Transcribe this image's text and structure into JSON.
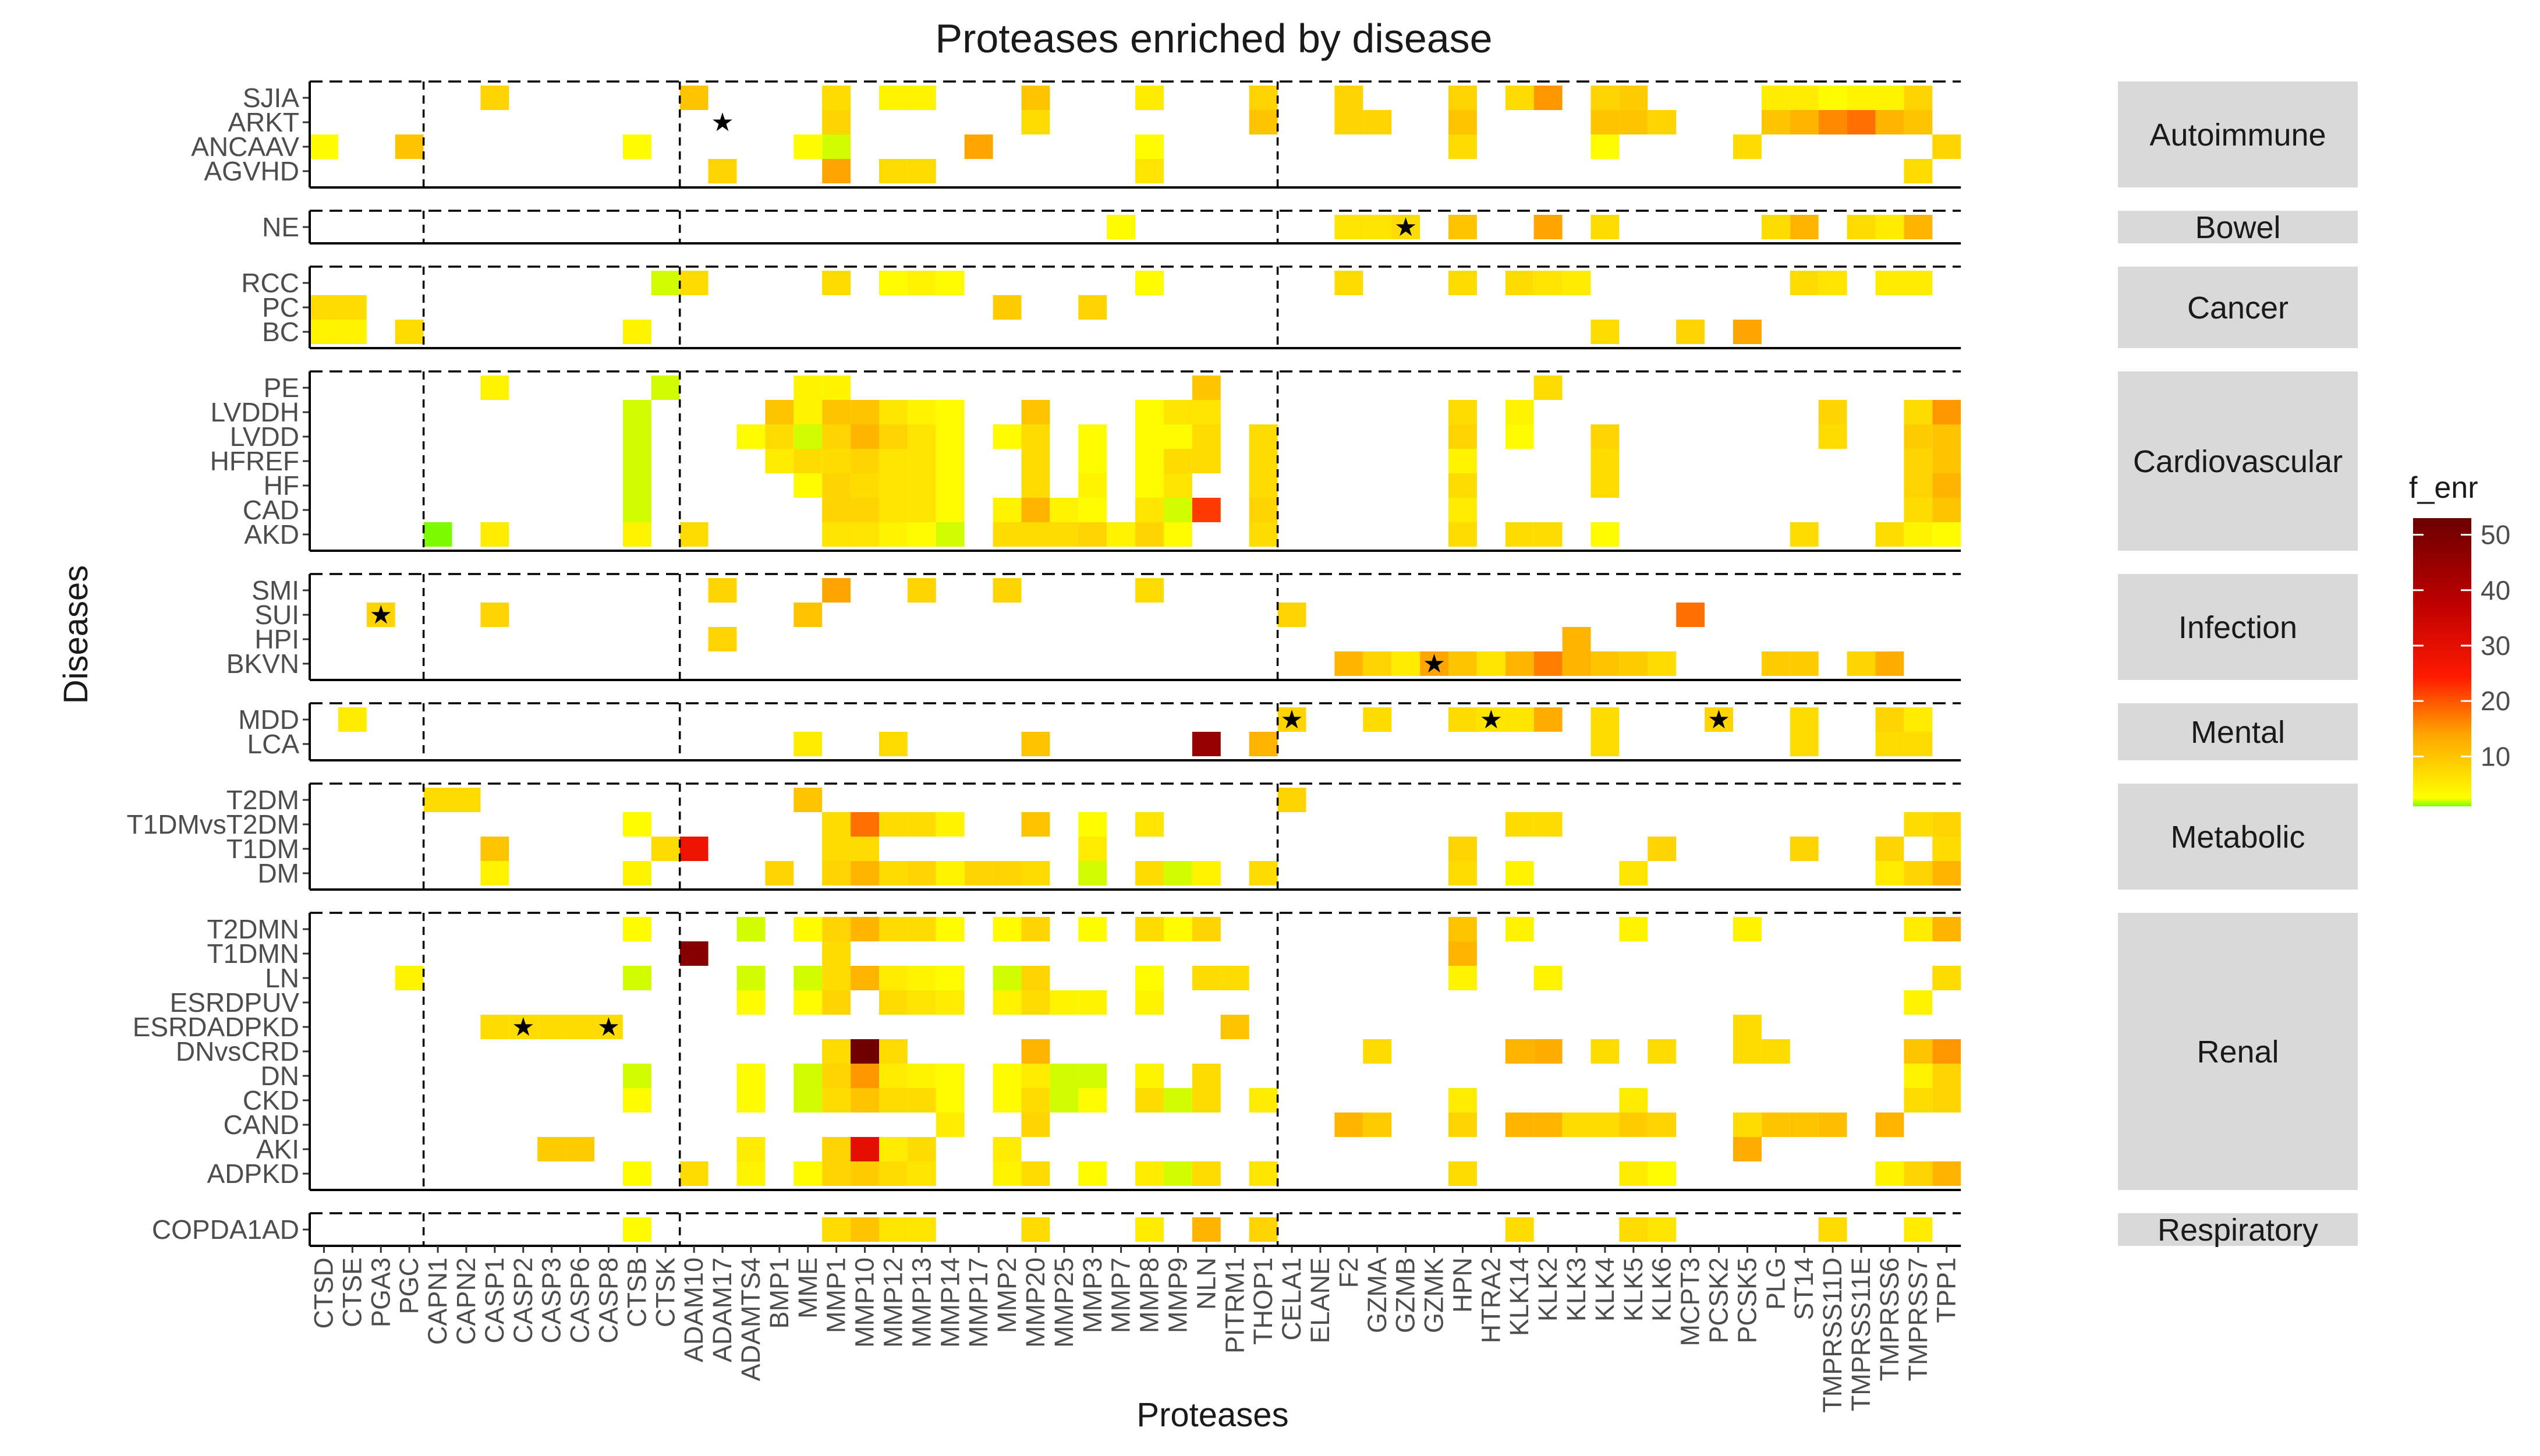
{
  "chart_data": {
    "type": "heatmap",
    "title": "Proteases enriched by disease",
    "xlabel": "Proteases",
    "ylabel": "Diseases",
    "colors": {
      "low": "#7CFC00",
      "mid1": "#FFFF00",
      "mid2": "#FFA500",
      "mid3": "#FF0000",
      "high": "#8B0000",
      "strip": "#D9D9D9",
      "star": "#000000"
    },
    "proteases": [
      "CTSD",
      "CTSE",
      "PGA3",
      "PGC",
      "CAPN1",
      "CAPN2",
      "CASP1",
      "CASP2",
      "CASP3",
      "CASP6",
      "CASP8",
      "CTSB",
      "CTSK",
      "ADAM10",
      "ADAM17",
      "ADAMTS4",
      "BMP1",
      "MME",
      "MMP1",
      "MMP10",
      "MMP12",
      "MMP13",
      "MMP14",
      "MMP17",
      "MMP2",
      "MMP20",
      "MMP25",
      "MMP3",
      "MMP7",
      "MMP8",
      "MMP9",
      "NLN",
      "PITRM1",
      "THOP1",
      "CELA1",
      "ELANE",
      "F2",
      "GZMA",
      "GZMB",
      "GZMK",
      "HPN",
      "HTRA2",
      "KLK14",
      "KLK2",
      "KLK3",
      "KLK4",
      "KLK5",
      "KLK6",
      "MCPT3",
      "PCSK2",
      "PCSK5",
      "PLG",
      "ST14",
      "TMPRSS11D",
      "TMPRSS11E",
      "TMPRSS6",
      "TMPRSS7",
      "TPP1"
    ],
    "class_boundaries_after": [
      "PGC",
      "CTSK",
      "THOP1"
    ],
    "groups": [
      {
        "name": "Autoimmune",
        "diseases": [
          "SJIA",
          "ARKT",
          "ANCAAV",
          "AGVHD"
        ]
      },
      {
        "name": "Bowel",
        "diseases": [
          "NE"
        ]
      },
      {
        "name": "Cancer",
        "diseases": [
          "RCC",
          "PC",
          "BC"
        ]
      },
      {
        "name": "Cardiovascular",
        "diseases": [
          "PE",
          "LVDDH",
          "LVDD",
          "HFREF",
          "HF",
          "CAD",
          "AKD"
        ]
      },
      {
        "name": "Infection",
        "diseases": [
          "SMI",
          "SUI",
          "HPI",
          "BKVN"
        ]
      },
      {
        "name": "Mental",
        "diseases": [
          "MDD",
          "LCA"
        ]
      },
      {
        "name": "Metabolic",
        "diseases": [
          "T2DM",
          "T1DMvsT2DM",
          "T1DM",
          "DM"
        ]
      },
      {
        "name": "Renal",
        "diseases": [
          "T2DMN",
          "T1DMN",
          "LN",
          "ESRDPUV",
          "ESRDADPKD",
          "DNvsCRD",
          "DN",
          "CKD",
          "CAND",
          "AKI",
          "ADPKD"
        ]
      },
      {
        "name": "Respiratory",
        "diseases": [
          "COPDA1AD"
        ]
      }
    ],
    "values": {
      "SJIA": {
        "CASP1": 8,
        "ADAM10": 10,
        "MMP1": 7,
        "MMP12": 4,
        "MMP13": 4,
        "MMP20": 10,
        "MMP8": 5,
        "THOP1": 8,
        "F2": 8,
        "HPN": 8,
        "KLK14": 7,
        "KLK2": 15,
        "KLK4": 8,
        "KLK5": 9,
        "PLG": 5,
        "ST14": 5,
        "TMPRSS11D": 3,
        "TMPRSS11E": 4,
        "TMPRSS6": 4,
        "TMPRSS7": 8
      },
      "ARKT": {
        "MMP1": 8,
        "MMP20": 7,
        "THOP1": 10,
        "F2": 8,
        "GZMA": 8,
        "HPN": 10,
        "KLK4": 10,
        "KLK5": 10,
        "KLK6": 8,
        "PLG": 10,
        "ST14": 12,
        "TMPRSS11D": 16,
        "TMPRSS11E": 18,
        "TMPRSS6": 12,
        "TMPRSS7": 10
      },
      "ANCAAV": {
        "CTSD": 3,
        "PGC": 10,
        "CTSB": 3,
        "MME": 3,
        "MMP1": 2,
        "MMP17": 14,
        "MMP8": 3,
        "HPN": 7,
        "KLK4": 3,
        "PCSK5": 7,
        "TPP1": 8
      },
      "AGVHD": {
        "ADAM17": 8,
        "MMP1": 14,
        "MMP12": 7,
        "MMP13": 7,
        "MMP8": 6,
        "TMPRSS7": 7
      },
      "NE": {
        "MMP7": 3,
        "F2": 6,
        "GZMA": 6,
        "GZMB": 7,
        "HPN": 10,
        "KLK2": 14,
        "KLK4": 7,
        "PLG": 7,
        "ST14": 12,
        "TMPRSS7": 12,
        "TMPRSS6": 5,
        "TMPRSS11E": 7
      },
      "RCC": {
        "CTSK": 2,
        "ADAM10": 7,
        "MMP1": 7,
        "MMP12": 3,
        "MMP13": 4,
        "MMP14": 3,
        "MMP8": 3,
        "F2": 7,
        "HPN": 7,
        "KLK2": 6,
        "KLK3": 5,
        "KLK14": 7,
        "ST14": 7,
        "TMPRSS11D": 6,
        "TMPRSS6": 5,
        "TMPRSS7": 5
      },
      "PC": {
        "CTSD": 7,
        "CTSE": 7,
        "MMP2": 9,
        "MMP3": 8
      },
      "BC": {
        "CTSD": 4,
        "CTSE": 4,
        "PGC": 7,
        "CTSB": 4,
        "KLK4": 7,
        "MCPT3": 8,
        "PCSK5": 14
      },
      "PE": {
        "CASP1": 4,
        "CTSK": 2,
        "MMP1": 4,
        "MME": 4,
        "NLN": 10,
        "KLK2": 7
      },
      "LVDDH": {
        "CTSB": 2,
        "BMP1": 10,
        "MME": 4,
        "MMP1": 10,
        "MMP10": 10,
        "MMP12": 6,
        "MMP13": 4,
        "MMP14": 3,
        "MMP20": 10,
        "MMP8": 3,
        "MMP9": 6,
        "NLN": 6,
        "HPN": 7,
        "KLK14": 4,
        "TMPRSS11D": 8,
        "TMPRSS7": 7,
        "TPP1": 15
      },
      "LVDD": {
        "CTSB": 2,
        "ADAMTS4": 3,
        "BMP1": 7,
        "MME": 2,
        "MMP1": 8,
        "MMP10": 12,
        "MMP12": 8,
        "MMP13": 6,
        "MMP14": 3,
        "MMP2": 3,
        "MMP20": 7,
        "MMP3": 3,
        "MMP8": 3,
        "MMP9": 3,
        "NLN": 7,
        "THOP1": 7,
        "HPN": 8,
        "KLK14": 3,
        "KLK4": 8,
        "TMPRSS11D": 7,
        "TMPRSS7": 9,
        "TPP1": 10
      },
      "HFREF": {
        "CTSB": 2,
        "BMP1": 5,
        "MME": 7,
        "MMP1": 7,
        "MMP10": 8,
        "MMP12": 6,
        "MMP13": 6,
        "MMP14": 3,
        "MMP20": 7,
        "MMP3": 3,
        "MMP8": 3,
        "MMP9": 7,
        "NLN": 7,
        "THOP1": 7,
        "HPN": 4,
        "KLK4": 7,
        "TMPRSS7": 8,
        "TPP1": 10
      },
      "HF": {
        "CTSB": 2,
        "MME": 3,
        "MMP1": 8,
        "MMP10": 7,
        "MMP12": 6,
        "MMP13": 6,
        "MMP14": 3,
        "MMP20": 7,
        "MMP3": 4,
        "MMP8": 3,
        "MMP9": 6,
        "THOP1": 7,
        "HPN": 7,
        "KLK4": 7,
        "TMPRSS7": 8,
        "TPP1": 12
      },
      "CAD": {
        "CTSB": 2,
        "MMP1": 8,
        "MMP10": 8,
        "MMP12": 6,
        "MMP13": 6,
        "MMP14": 3,
        "MMP2": 4,
        "MMP20": 12,
        "MMP25": 4,
        "MMP3": 3,
        "MMP8": 6,
        "MMP9": 2,
        "NLN": 22,
        "THOP1": 8,
        "HPN": 5,
        "TMPRSS7": 7,
        "TPP1": 10
      },
      "AKD": {
        "CAPN1": 1,
        "CASP1": 5,
        "CTSB": 4,
        "ADAM10": 7,
        "MMP1": 6,
        "MMP10": 6,
        "MMP12": 4,
        "MMP13": 3,
        "MMP14": 2,
        "MMP2": 7,
        "MMP20": 7,
        "MMP25": 7,
        "MMP3": 8,
        "MMP7": 4,
        "MMP8": 8,
        "MMP9": 3,
        "THOP1": 7,
        "HPN": 7,
        "KLK14": 7,
        "KLK2": 7,
        "KLK4": 3,
        "ST14": 7,
        "TMPRSS6": 7,
        "TMPRSS7": 4,
        "TPP1": 3
      },
      "SMI": {
        "ADAM17": 8,
        "MMP1": 14,
        "MMP13": 8,
        "MMP2": 8,
        "MMP8": 7
      },
      "SUI": {
        "PGA3": 8,
        "CASP1": 8,
        "MME": 10,
        "CELA1": 8,
        "MCPT3": 18
      },
      "HPI": {
        "ADAM17": 8,
        "KLK3": 12
      },
      "BKVN": {
        "F2": 12,
        "GZMA": 8,
        "GZMK": 14,
        "GZMB": 5,
        "HPN": 10,
        "HTRA2": 6,
        "KLK14": 12,
        "KLK2": 17,
        "KLK3": 12,
        "KLK4": 10,
        "KLK5": 9,
        "KLK6": 7,
        "PLG": 9,
        "ST14": 9,
        "TMPRSS11E": 8,
        "TMPRSS6": 13
      },
      "MDD": {
        "CTSE": 5,
        "CELA1": 8,
        "GZMA": 7,
        "HTRA2": 6,
        "HPN": 7,
        "KLK14": 6,
        "KLK2": 13,
        "KLK4": 7,
        "PCSK2": 8,
        "ST14": 7,
        "TMPRSS6": 8,
        "TMPRSS7": 5
      },
      "LCA": {
        "MME": 5,
        "MMP12": 7,
        "MMP20": 10,
        "NLN": 45,
        "THOP1": 12,
        "KLK4": 7,
        "ST14": 7,
        "TMPRSS6": 7,
        "TMPRSS7": 7
      },
      "T2DM": {
        "CAPN1": 7,
        "CAPN2": 7,
        "MME": 10,
        "CELA1": 8
      },
      "T1DMvsT2DM": {
        "CTSB": 3,
        "MMP1": 7,
        "MMP10": 18,
        "MMP12": 7,
        "MMP13": 7,
        "MMP14": 4,
        "MMP20": 10,
        "MMP3": 3,
        "MMP8": 6,
        "KLK14": 7,
        "KLK2": 7,
        "TMPRSS7": 7,
        "TPP1": 8
      },
      "T1DM": {
        "CASP1": 10,
        "CTSK": 7,
        "ADAM10": 28,
        "MMP1": 7,
        "MMP10": 7,
        "MMP3": 5,
        "HPN": 8,
        "KLK6": 8,
        "ST14": 8,
        "TMPRSS6": 8,
        "TPP1": 7
      },
      "DM": {
        "CASP1": 4,
        "CTSB": 4,
        "BMP1": 8,
        "MMP1": 8,
        "MMP10": 12,
        "MMP12": 7,
        "MMP13": 8,
        "MMP14": 4,
        "MMP17": 8,
        "MMP2": 8,
        "MMP20": 7,
        "MMP3": 2,
        "MMP8": 7,
        "MMP9": 2,
        "NLN": 4,
        "THOP1": 7,
        "HPN": 7,
        "KLK14": 4,
        "KLK5": 6,
        "TMPRSS6": 5,
        "TMPRSS7": 8,
        "TPP1": 12
      },
      "T2DMN": {
        "CTSB": 3,
        "ADAMTS4": 2,
        "MME": 3,
        "MMP1": 8,
        "MMP10": 12,
        "MMP12": 7,
        "MMP13": 7,
        "MMP14": 3,
        "MMP2": 3,
        "MMP20": 8,
        "MMP3": 3,
        "MMP8": 7,
        "MMP9": 3,
        "NLN": 8,
        "HPN": 10,
        "KLK14": 4,
        "KLK5": 4,
        "PCSK5": 4,
        "TMPRSS7": 5,
        "TPP1": 12
      },
      "T1DMN": {
        "ADAM10": 48,
        "MMP1": 7,
        "HPN": 12
      },
      "LN": {
        "PGC": 4,
        "CTSB": 2,
        "ADAMTS4": 2,
        "MME": 2,
        "MMP1": 7,
        "MMP10": 12,
        "MMP12": 5,
        "MMP13": 4,
        "MMP14": 3,
        "MMP2": 2,
        "MMP20": 8,
        "MMP8": 3,
        "NLN": 7,
        "PITRM1": 7,
        "HPN": 4,
        "KLK2": 4,
        "TPP1": 7
      },
      "ESRDPUV": {
        "ADAMTS4": 3,
        "MME": 3,
        "MMP1": 8,
        "MMP12": 7,
        "MMP13": 6,
        "MMP14": 5,
        "MMP2": 4,
        "MMP20": 7,
        "MMP25": 4,
        "MMP3": 4,
        "MMP8": 4,
        "TMPRSS7": 4
      },
      "ESRDADPKD": {
        "CASP1": 7,
        "CASP2": 7,
        "CASP3": 7,
        "CASP6": 7,
        "CASP8": 7,
        "PITRM1": 10,
        "PCSK5": 7
      },
      "DNvsCRD": {
        "MMP1": 7,
        "MMP10": 52,
        "MMP12": 7,
        "MMP20": 12,
        "GZMA": 7,
        "KLK14": 12,
        "KLK2": 13,
        "KLK4": 7,
        "KLK6": 7,
        "PCSK5": 7,
        "PLG": 7,
        "TMPRSS7": 10,
        "TPP1": 15
      },
      "DN": {
        "CTSB": 2,
        "ADAMTS4": 3,
        "MME": 2,
        "MMP1": 8,
        "MMP10": 15,
        "MMP12": 5,
        "MMP13": 4,
        "MMP14": 3,
        "MMP2": 3,
        "MMP20": 5,
        "MMP25": 2,
        "MMP3": 2,
        "MMP8": 4,
        "NLN": 7,
        "TMPRSS7": 4,
        "TPP1": 8
      },
      "CKD": {
        "CTSB": 3,
        "ADAMTS4": 3,
        "MME": 2,
        "MMP1": 7,
        "MMP10": 10,
        "MMP12": 7,
        "MMP13": 7,
        "MMP14": 3,
        "MMP2": 3,
        "MMP20": 7,
        "MMP25": 2,
        "MMP3": 3,
        "MMP8": 7,
        "MMP9": 2,
        "NLN": 7,
        "THOP1": 5,
        "HPN": 5,
        "KLK5": 5,
        "TMPRSS7": 7,
        "TPP1": 8
      },
      "CAND": {
        "MMP14": 5,
        "MMP20": 8,
        "F2": 12,
        "GZMA": 9,
        "HPN": 8,
        "KLK14": 12,
        "KLK2": 12,
        "KLK3": 7,
        "KLK4": 7,
        "KLK5": 9,
        "KLK6": 8,
        "PCSK5": 7,
        "PLG": 10,
        "ST14": 10,
        "TMPRSS11D": 11,
        "TMPRSS6": 12
      },
      "AKI": {
        "CASP3": 9,
        "CASP6": 9,
        "ADAMTS4": 5,
        "MMP1": 8,
        "MMP10": 30,
        "MMP12": 5,
        "MMP13": 7,
        "MMP2": 5,
        "PCSK5": 13
      },
      "ADPKD": {
        "CTSB": 3,
        "ADAM10": 7,
        "ADAMTS4": 4,
        "MME": 3,
        "MMP1": 8,
        "MMP10": 9,
        "MMP12": 7,
        "MMP13": 6,
        "MMP2": 4,
        "MMP20": 7,
        "MMP3": 3,
        "MMP8": 5,
        "MMP9": 2,
        "NLN": 7,
        "THOP1": 6,
        "HPN": 7,
        "KLK5": 5,
        "KLK6": 3,
        "TMPRSS6": 4,
        "TMPRSS7": 8,
        "TPP1": 12
      },
      "COPDA1AD": {
        "CTSB": 3,
        "MMP1": 7,
        "MMP10": 10,
        "MMP12": 6,
        "MMP13": 6,
        "MMP20": 7,
        "MMP8": 5,
        "NLN": 12,
        "THOP1": 8,
        "KLK14": 7,
        "KLK5": 7,
        "KLK6": 6,
        "TMPRSS11D": 7,
        "TMPRSS7": 5
      }
    },
    "stars": [
      {
        "disease": "ARKT",
        "protease": "ADAM17"
      },
      {
        "disease": "NE",
        "protease": "GZMB"
      },
      {
        "disease": "SUI",
        "protease": "PGA3"
      },
      {
        "disease": "BKVN",
        "protease": "GZMK"
      },
      {
        "disease": "MDD",
        "protease": "CELA1"
      },
      {
        "disease": "MDD",
        "protease": "HTRA2"
      },
      {
        "disease": "MDD",
        "protease": "PCSK2"
      },
      {
        "disease": "ESRDADPKD",
        "protease": "CASP2"
      },
      {
        "disease": "ESRDADPKD",
        "protease": "CASP8"
      }
    ],
    "legend": {
      "title": "f_enr",
      "position": "right",
      "min": 1,
      "max": 53,
      "ticks": [
        10,
        20,
        30,
        40,
        50
      ]
    }
  }
}
